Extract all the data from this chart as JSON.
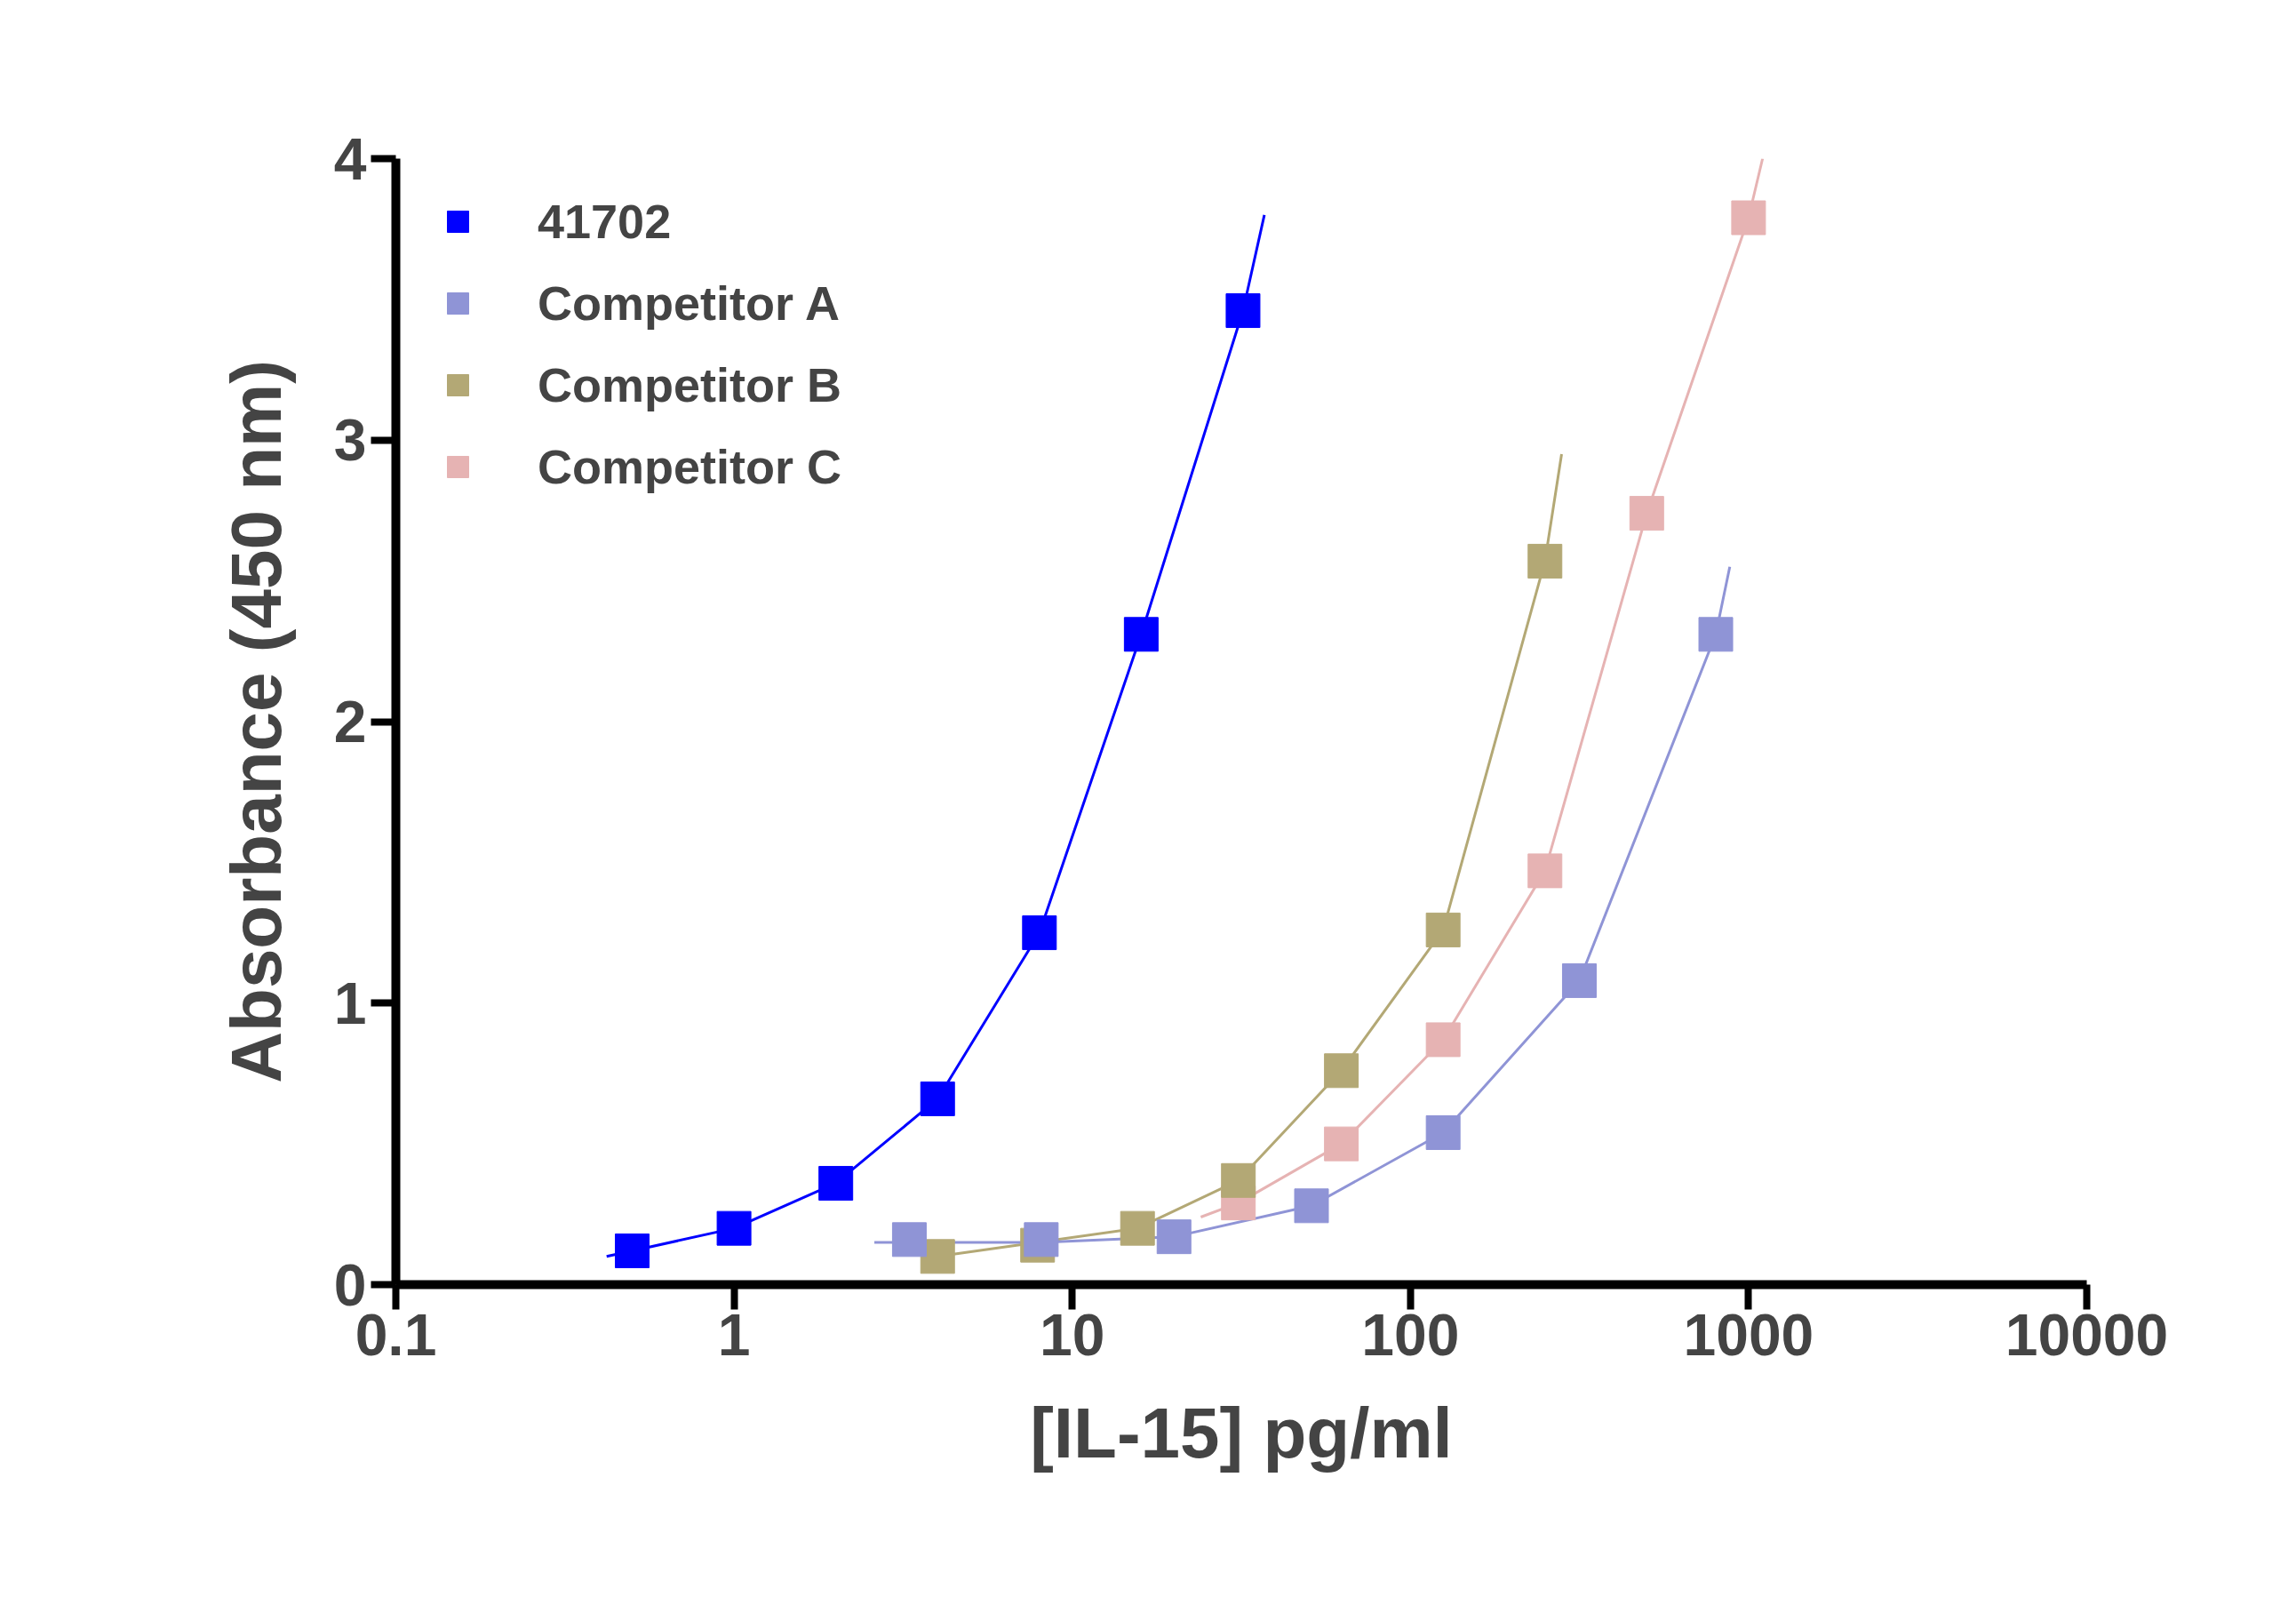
{
  "chart_data": {
    "type": "scatter",
    "xlabel": "[IL-15] pg/ml",
    "ylabel": "Absorbance (450 nm)",
    "log": "x",
    "xlim": [
      0.1,
      10000
    ],
    "xticks": [
      0.1,
      1,
      10,
      100,
      1000,
      10000
    ],
    "ylim": [
      0,
      4
    ],
    "yticks": [
      0,
      1,
      2,
      3,
      4
    ],
    "grid": false,
    "legend": "top left",
    "marker": "square",
    "line_style": "solid",
    "series": [
      {
        "name": "41702",
        "color": "#0000ff",
        "x": [
          0.5,
          1,
          2,
          4,
          8,
          16,
          32
        ],
        "values": [
          0.12,
          0.2,
          0.36,
          0.66,
          1.25,
          2.31,
          3.46
        ]
      },
      {
        "name": "Competitor A",
        "color": "#8f94d6",
        "x": [
          3.3,
          8.1,
          20,
          51,
          125,
          316,
          800
        ],
        "values": [
          0.16,
          0.16,
          0.17,
          0.28,
          0.54,
          1.08,
          2.31
        ]
      },
      {
        "name": "Competitor B",
        "color": "#b3a875",
        "x": [
          4,
          7.9,
          15.6,
          31,
          62.5,
          125,
          250
        ],
        "values": [
          0.1,
          0.14,
          0.2,
          0.37,
          0.76,
          1.26,
          2.57
        ]
      },
      {
        "name": "Competitor C",
        "color": "#e6b3b3",
        "x": [
          31,
          62.5,
          125,
          250,
          500,
          1000
        ],
        "values": [
          0.29,
          0.5,
          0.87,
          1.47,
          2.74,
          3.79
        ]
      },
      {
        "type": "line",
        "marker": "none",
        "color": "#0000ff",
        "x": [
          0.42,
          0.5,
          1,
          2,
          4,
          8,
          16,
          32,
          37
        ],
        "values": [
          0.1,
          0.12,
          0.2,
          0.36,
          0.66,
          1.25,
          2.31,
          3.46,
          3.8
        ]
      },
      {
        "type": "line",
        "marker": "none",
        "color": "#8f94d6",
        "x": [
          2.6,
          3.3,
          8.1,
          20,
          51,
          125,
          316,
          800,
          880
        ],
        "values": [
          0.15,
          0.15,
          0.15,
          0.17,
          0.28,
          0.54,
          1.08,
          2.31,
          2.55
        ]
      },
      {
        "type": "line",
        "marker": "none",
        "color": "#b3a875",
        "x": [
          3.6,
          4,
          15.6,
          31,
          62.5,
          125,
          250,
          280
        ],
        "values": [
          0.09,
          0.1,
          0.2,
          0.37,
          0.76,
          1.26,
          2.57,
          2.95
        ]
      },
      {
        "type": "line",
        "marker": "none",
        "color": "#e6b3b3",
        "x": [
          24,
          31,
          62.5,
          125,
          250,
          500,
          1000,
          1100
        ],
        "values": [
          0.24,
          0.29,
          0.5,
          0.87,
          1.47,
          2.74,
          3.79,
          4.0
        ]
      }
    ]
  }
}
